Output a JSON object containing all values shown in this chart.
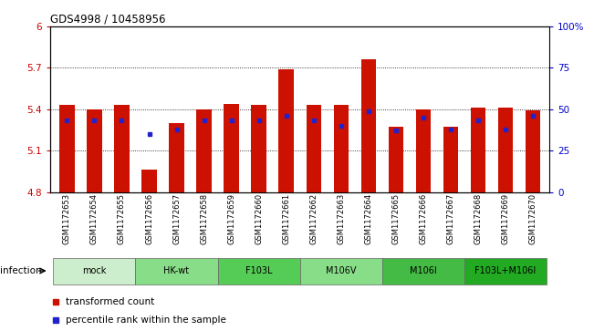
{
  "title": "GDS4998 / 10458956",
  "samples": [
    "GSM1172653",
    "GSM1172654",
    "GSM1172655",
    "GSM1172656",
    "GSM1172657",
    "GSM1172658",
    "GSM1172659",
    "GSM1172660",
    "GSM1172661",
    "GSM1172662",
    "GSM1172663",
    "GSM1172664",
    "GSM1172665",
    "GSM1172666",
    "GSM1172667",
    "GSM1172668",
    "GSM1172669",
    "GSM1172670"
  ],
  "bar_values": [
    5.43,
    5.4,
    5.43,
    4.96,
    5.3,
    5.4,
    5.44,
    5.43,
    5.69,
    5.43,
    5.43,
    5.76,
    5.27,
    5.4,
    5.27,
    5.41,
    5.41,
    5.39
  ],
  "blue_values": [
    43,
    43,
    43,
    35,
    38,
    43,
    43,
    43,
    46,
    43,
    40,
    49,
    37,
    45,
    38,
    43,
    38,
    46
  ],
  "ymin": 4.8,
  "ymax": 6.0,
  "yticks": [
    4.8,
    5.1,
    5.4,
    5.7,
    6.0
  ],
  "ytick_labels": [
    "4.8",
    "5.1",
    "5.4",
    "5.7",
    "6"
  ],
  "right_yticks": [
    0,
    25,
    50,
    75,
    100
  ],
  "right_ytick_labels": [
    "0",
    "25",
    "50",
    "75",
    "100%"
  ],
  "bar_color": "#cc1100",
  "blue_color": "#2222cc",
  "groups": [
    {
      "label": "mock",
      "start": 0,
      "end": 3,
      "color": "#cceecc"
    },
    {
      "label": "HK-wt",
      "start": 3,
      "end": 6,
      "color": "#88dd88"
    },
    {
      "label": "F103L",
      "start": 6,
      "end": 9,
      "color": "#55cc55"
    },
    {
      "label": "M106V",
      "start": 9,
      "end": 12,
      "color": "#88dd88"
    },
    {
      "label": "M106I",
      "start": 12,
      "end": 15,
      "color": "#44bb44"
    },
    {
      "label": "F103L+M106I",
      "start": 15,
      "end": 18,
      "color": "#22aa22"
    }
  ],
  "tick_label_color": "#cc0000",
  "right_tick_color": "#0000cc",
  "bar_width": 0.55
}
